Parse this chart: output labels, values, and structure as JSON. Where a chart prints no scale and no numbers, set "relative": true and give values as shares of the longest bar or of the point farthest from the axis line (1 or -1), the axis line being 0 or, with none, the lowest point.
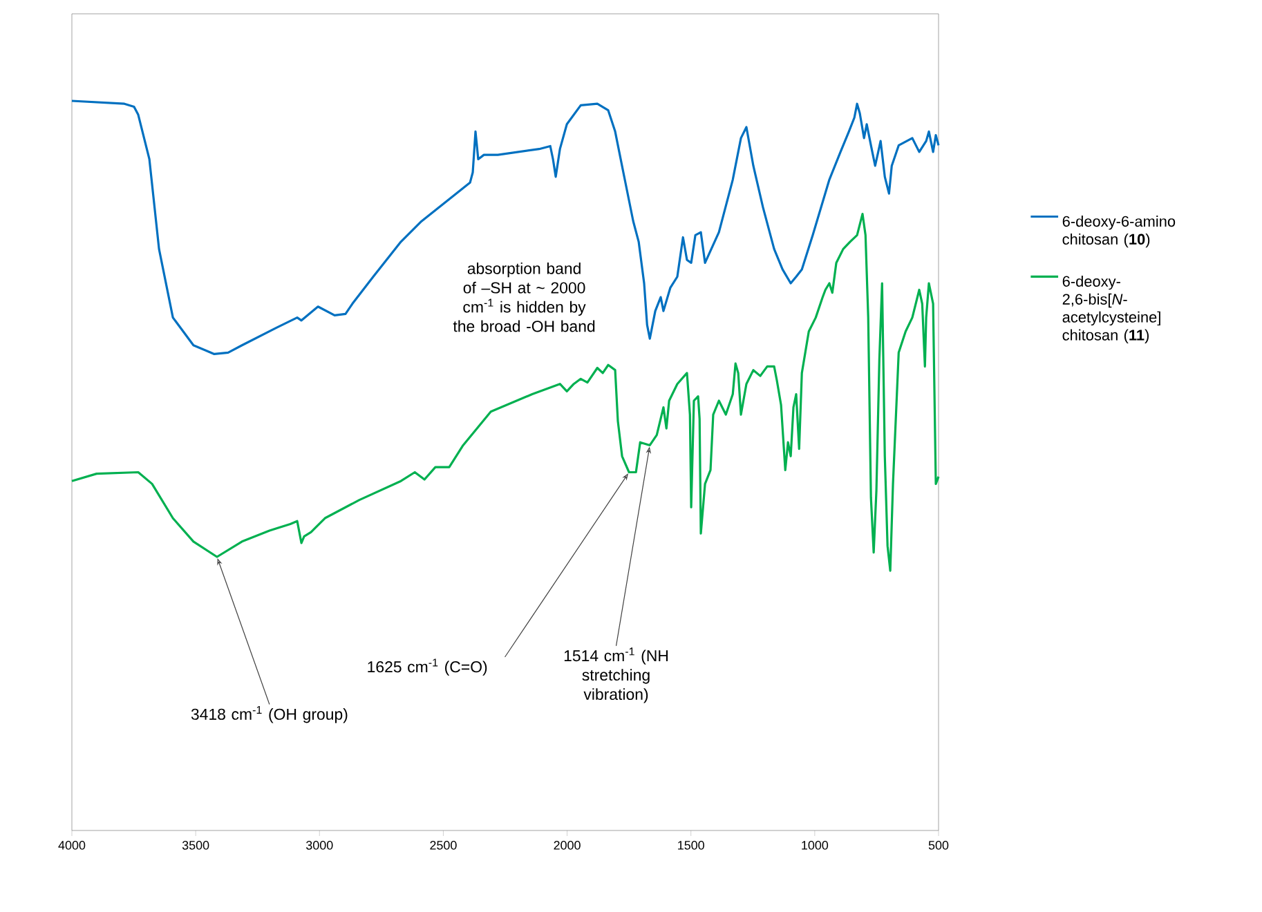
{
  "chart_data": {
    "type": "line",
    "relative": true,
    "xlim": [
      4000,
      500
    ],
    "xticks": [
      4000,
      3500,
      3000,
      2500,
      2000,
      1500,
      1000,
      500
    ],
    "grid": false,
    "legend": "right",
    "marker": "none",
    "line_style": "solid",
    "annotations": [
      "absorption band of –SH at ~ 2000 cm$^{-1}$ is hidden by the broad -OH band",
      {
        "text": "1625 cm$^{-1}$ (C=O)",
        "x": 1750,
        "y": 0.491
      },
      {
        "text": "1514 cm$^{-1}$ (NH stretching vibration)",
        "x": 1666,
        "y": 0.528
      },
      {
        "text": "3418 cm$^{-1}$ (OH group)",
        "x": 3414,
        "y": 0.375
      }
    ],
    "series": [
      {
        "name": "6-deoxy-6-amino chitosan (**10**)",
        "color": "#0070c0",
        "x": [
          4000,
          3788,
          3749,
          3732,
          3687,
          3648,
          3592,
          3509,
          3425,
          3369,
          3313,
          3174,
          3090,
          3073,
          3006,
          2939,
          2895,
          2867,
          2783,
          2671,
          2588,
          2392,
          2381,
          2370,
          2359,
          2336,
          2280,
          2113,
          2068,
          2057,
          2046,
          2029,
          2001,
          1945,
          1878,
          1834,
          1806,
          1767,
          1733,
          1711,
          1689,
          1677,
          1666,
          1644,
          1622,
          1611,
          1583,
          1555,
          1532,
          1516,
          1499,
          1482,
          1460,
          1443,
          1387,
          1331,
          1298,
          1276,
          1248,
          1209,
          1164,
          1130,
          1097,
          1075,
          1052,
          1008,
          941,
          896,
          862,
          840,
          829,
          818,
          801,
          790,
          773,
          756,
          734,
          717,
          700,
          689,
          661,
          606,
          578,
          550,
          539,
          522,
          511,
          500
        ],
        "values": [
          1.0,
          0.996,
          0.992,
          0.981,
          0.92,
          0.797,
          0.703,
          0.665,
          0.653,
          0.655,
          0.665,
          0.689,
          0.703,
          0.699,
          0.718,
          0.706,
          0.708,
          0.722,
          0.759,
          0.807,
          0.835,
          0.888,
          0.902,
          0.958,
          0.92,
          0.926,
          0.926,
          0.934,
          0.938,
          0.92,
          0.896,
          0.934,
          0.968,
          0.994,
          0.996,
          0.987,
          0.958,
          0.892,
          0.835,
          0.807,
          0.75,
          0.693,
          0.674,
          0.712,
          0.731,
          0.712,
          0.744,
          0.759,
          0.813,
          0.782,
          0.778,
          0.816,
          0.82,
          0.778,
          0.82,
          0.892,
          0.949,
          0.964,
          0.911,
          0.854,
          0.797,
          0.769,
          0.75,
          0.759,
          0.769,
          0.816,
          0.892,
          0.93,
          0.958,
          0.977,
          0.996,
          0.983,
          0.949,
          0.968,
          0.939,
          0.911,
          0.945,
          0.896,
          0.873,
          0.911,
          0.939,
          0.949,
          0.93,
          0.945,
          0.958,
          0.93,
          0.953,
          0.939
        ]
      },
      {
        "name": "6-deoxy-2,6-bis[*N*-acetylcysteine] chitosan (**11**)",
        "color": "#00b050",
        "x": [
          4000,
          3900,
          3732,
          3676,
          3592,
          3509,
          3414,
          3313,
          3202,
          3118,
          3090,
          3073,
          3062,
          3034,
          2978,
          2839,
          2671,
          2615,
          2576,
          2532,
          2476,
          2420,
          2364,
          2308,
          2141,
          2029,
          2001,
          1973,
          1945,
          1918,
          1878,
          1856,
          1834,
          1806,
          1795,
          1778,
          1750,
          1722,
          1705,
          1666,
          1638,
          1611,
          1599,
          1588,
          1555,
          1516,
          1504,
          1499,
          1488,
          1471,
          1465,
          1460,
          1443,
          1421,
          1410,
          1387,
          1359,
          1331,
          1320,
          1309,
          1298,
          1276,
          1248,
          1220,
          1192,
          1164,
          1153,
          1136,
          1119,
          1108,
          1097,
          1086,
          1075,
          1063,
          1052,
          1024,
          996,
          968,
          957,
          941,
          929,
          913,
          885,
          857,
          829,
          807,
          795,
          784,
          773,
          762,
          751,
          739,
          728,
          717,
          706,
          695,
          684,
          661,
          633,
          606,
          578,
          566,
          555,
          550,
          539,
          522,
          511,
          500
        ],
        "values": [
          0.479,
          0.489,
          0.491,
          0.475,
          0.428,
          0.396,
          0.375,
          0.396,
          0.411,
          0.42,
          0.424,
          0.394,
          0.403,
          0.409,
          0.428,
          0.453,
          0.479,
          0.491,
          0.481,
          0.498,
          0.498,
          0.528,
          0.551,
          0.574,
          0.598,
          0.612,
          0.602,
          0.612,
          0.619,
          0.614,
          0.634,
          0.627,
          0.638,
          0.631,
          0.561,
          0.513,
          0.491,
          0.491,
          0.532,
          0.528,
          0.542,
          0.58,
          0.551,
          0.589,
          0.612,
          0.627,
          0.57,
          0.443,
          0.589,
          0.595,
          0.564,
          0.407,
          0.475,
          0.494,
          0.57,
          0.589,
          0.57,
          0.598,
          0.64,
          0.627,
          0.57,
          0.612,
          0.631,
          0.623,
          0.636,
          0.636,
          0.617,
          0.583,
          0.494,
          0.532,
          0.513,
          0.58,
          0.598,
          0.523,
          0.627,
          0.684,
          0.703,
          0.731,
          0.741,
          0.75,
          0.737,
          0.778,
          0.797,
          0.807,
          0.816,
          0.845,
          0.816,
          0.703,
          0.456,
          0.381,
          0.466,
          0.646,
          0.75,
          0.513,
          0.39,
          0.356,
          0.475,
          0.655,
          0.684,
          0.703,
          0.741,
          0.722,
          0.636,
          0.703,
          0.75,
          0.722,
          0.475,
          0.485
        ]
      }
    ]
  }
}
